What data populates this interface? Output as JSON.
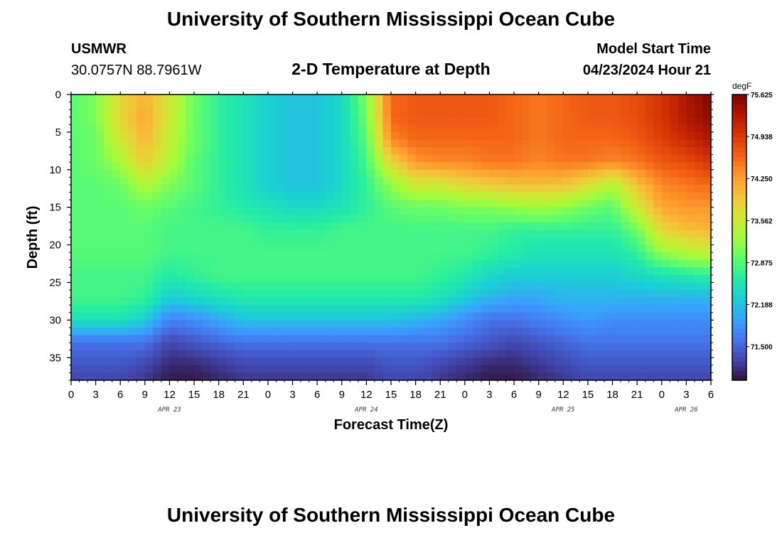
{
  "page": {
    "title": "University of Southern Mississippi Ocean Cube",
    "station": "USMWR",
    "coords": "30.0757N  88.7961W",
    "subtitle": "2-D Temperature at Depth",
    "model_start_label": "Model Start Time",
    "model_start_value": "04/23/2024 Hour 21",
    "footer_title": "University of Southern Mississippi Ocean Cube"
  },
  "chart_data": {
    "type": "heatmap",
    "title": "2-D Temperature at Depth",
    "xlabel": "Forecast Time(Z)",
    "ylabel": "Depth (ft)",
    "x_unit": "hours (Z)",
    "xlim": [
      0,
      78
    ],
    "ylim": [
      0,
      38
    ],
    "y_inverted": true,
    "x_tick_labels": [
      "0",
      "3",
      "6",
      "9",
      "12",
      "15",
      "18",
      "21",
      "0",
      "3",
      "6",
      "9",
      "12",
      "15",
      "18",
      "21",
      "0",
      "3",
      "6",
      "9",
      "12",
      "15",
      "18",
      "21",
      "0",
      "3",
      "6"
    ],
    "y_ticks": [
      0,
      5,
      10,
      15,
      20,
      25,
      30,
      35
    ],
    "date_labels": [
      {
        "text": "APR 23",
        "at_hour": 12
      },
      {
        "text": "APR 24",
        "at_hour": 36
      },
      {
        "text": "APR 25",
        "at_hour": 60
      },
      {
        "text": "APR 26",
        "at_hour": 75
      }
    ],
    "colorbar": {
      "unit": "degF",
      "min": 70.95,
      "max": 75.625,
      "tick_labels": [
        "75.625",
        "74.938",
        "74.250",
        "73.562",
        "72.875",
        "72.188",
        "71.500"
      ],
      "tick_values": [
        75.625,
        74.938,
        74.25,
        73.562,
        72.875,
        72.188,
        71.5
      ],
      "colors": [
        "#30123b",
        "#4145ab",
        "#4675ed",
        "#39a2fc",
        "#1bcfd4",
        "#24eca6",
        "#61fc6c",
        "#a4fc3b",
        "#d1e834",
        "#f3c63a",
        "#fe9b2d",
        "#f36315",
        "#d93806",
        "#b11901",
        "#7a0403"
      ]
    },
    "depths_ft": [
      0,
      3,
      6,
      9,
      12,
      15,
      18,
      21,
      24,
      27,
      30,
      33,
      36,
      38
    ],
    "hours": [
      0,
      3,
      6,
      9,
      12,
      15,
      18,
      21,
      24,
      27,
      30,
      33,
      36,
      39,
      42,
      45,
      48,
      51,
      54,
      57,
      60,
      63,
      66,
      69,
      72,
      75,
      78
    ],
    "temperature_degF": [
      [
        72.9,
        73.1,
        73.8,
        74.1,
        73.6,
        73.0,
        72.7,
        72.5,
        72.3,
        72.2,
        72.2,
        72.4,
        73.1,
        74.6,
        74.7,
        74.7,
        74.7,
        74.7,
        74.6,
        74.5,
        74.6,
        74.7,
        74.7,
        74.8,
        75.0,
        75.3,
        75.6
      ],
      [
        72.9,
        73.1,
        73.8,
        74.2,
        73.6,
        73.0,
        72.7,
        72.5,
        72.3,
        72.2,
        72.2,
        72.4,
        73.0,
        74.6,
        74.7,
        74.7,
        74.7,
        74.7,
        74.6,
        74.5,
        74.6,
        74.7,
        74.7,
        74.8,
        75.0,
        75.3,
        75.5
      ],
      [
        72.9,
        73.0,
        73.6,
        74.1,
        73.5,
        73.0,
        72.7,
        72.5,
        72.3,
        72.2,
        72.2,
        72.4,
        72.9,
        74.4,
        74.6,
        74.6,
        74.6,
        74.6,
        74.6,
        74.5,
        74.6,
        74.6,
        74.6,
        74.7,
        74.9,
        75.1,
        75.3
      ],
      [
        72.9,
        73.0,
        73.3,
        73.9,
        73.4,
        72.9,
        72.7,
        72.5,
        72.3,
        72.2,
        72.2,
        72.4,
        72.8,
        73.8,
        74.3,
        74.4,
        74.4,
        74.5,
        74.5,
        74.4,
        74.5,
        74.5,
        74.4,
        74.5,
        74.7,
        74.8,
        75.0
      ],
      [
        72.9,
        72.9,
        73.0,
        73.4,
        73.1,
        72.9,
        72.7,
        72.5,
        72.3,
        72.2,
        72.2,
        72.4,
        72.7,
        73.2,
        73.6,
        73.6,
        73.8,
        73.9,
        74.0,
        74.0,
        74.0,
        73.7,
        73.4,
        74.0,
        74.4,
        74.5,
        74.6
      ],
      [
        72.9,
        72.9,
        72.9,
        73.0,
        72.9,
        72.8,
        72.7,
        72.6,
        72.5,
        72.4,
        72.4,
        72.5,
        72.7,
        72.9,
        73.0,
        73.0,
        73.1,
        73.1,
        73.2,
        73.3,
        73.2,
        73.0,
        72.9,
        73.6,
        74.2,
        74.3,
        74.3
      ],
      [
        72.9,
        72.9,
        72.9,
        72.9,
        72.8,
        72.8,
        72.8,
        72.8,
        72.7,
        72.7,
        72.7,
        72.8,
        72.8,
        72.8,
        72.8,
        72.8,
        72.8,
        72.8,
        72.7,
        72.7,
        72.7,
        72.7,
        72.7,
        73.0,
        73.8,
        74.0,
        74.1
      ],
      [
        72.9,
        72.9,
        72.9,
        72.9,
        72.8,
        72.8,
        72.8,
        72.8,
        72.8,
        72.8,
        72.8,
        72.8,
        72.8,
        72.8,
        72.8,
        72.8,
        72.8,
        72.7,
        72.6,
        72.5,
        72.5,
        72.5,
        72.5,
        72.7,
        73.2,
        73.4,
        73.5
      ],
      [
        72.8,
        72.8,
        72.8,
        72.8,
        72.6,
        72.7,
        72.8,
        72.8,
        72.8,
        72.8,
        72.8,
        72.8,
        72.8,
        72.8,
        72.8,
        72.7,
        72.6,
        72.4,
        72.3,
        72.3,
        72.3,
        72.3,
        72.3,
        72.4,
        72.5,
        72.6,
        72.7
      ],
      [
        72.8,
        72.8,
        72.8,
        72.7,
        72.3,
        72.4,
        72.5,
        72.6,
        72.6,
        72.6,
        72.6,
        72.6,
        72.6,
        72.6,
        72.6,
        72.5,
        72.3,
        72.1,
        72.0,
        72.0,
        72.1,
        72.1,
        72.1,
        72.1,
        72.1,
        72.1,
        72.1
      ],
      [
        72.5,
        72.5,
        72.5,
        72.3,
        71.7,
        71.8,
        72.0,
        72.2,
        72.2,
        72.2,
        72.2,
        72.2,
        72.2,
        72.2,
        72.1,
        72.0,
        71.8,
        71.6,
        71.6,
        71.7,
        71.8,
        71.9,
        71.8,
        71.8,
        71.8,
        71.8,
        71.8
      ],
      [
        71.6,
        71.6,
        71.6,
        71.6,
        71.3,
        71.4,
        71.5,
        71.6,
        71.6,
        71.6,
        71.6,
        71.6,
        71.6,
        71.6,
        71.6,
        71.6,
        71.5,
        71.4,
        71.3,
        71.4,
        71.5,
        71.6,
        71.6,
        71.6,
        71.6,
        71.6,
        71.6
      ],
      [
        71.4,
        71.4,
        71.4,
        71.3,
        71.1,
        71.1,
        71.2,
        71.3,
        71.3,
        71.3,
        71.3,
        71.3,
        71.3,
        71.4,
        71.4,
        71.3,
        71.2,
        71.1,
        71.1,
        71.2,
        71.3,
        71.4,
        71.4,
        71.4,
        71.4,
        71.4,
        71.4
      ],
      [
        71.3,
        71.3,
        71.3,
        71.2,
        71.0,
        71.0,
        71.1,
        71.2,
        71.2,
        71.2,
        71.2,
        71.2,
        71.2,
        71.3,
        71.3,
        71.2,
        71.1,
        71.0,
        71.0,
        71.1,
        71.2,
        71.3,
        71.3,
        71.3,
        71.3,
        71.3,
        71.3
      ]
    ]
  }
}
